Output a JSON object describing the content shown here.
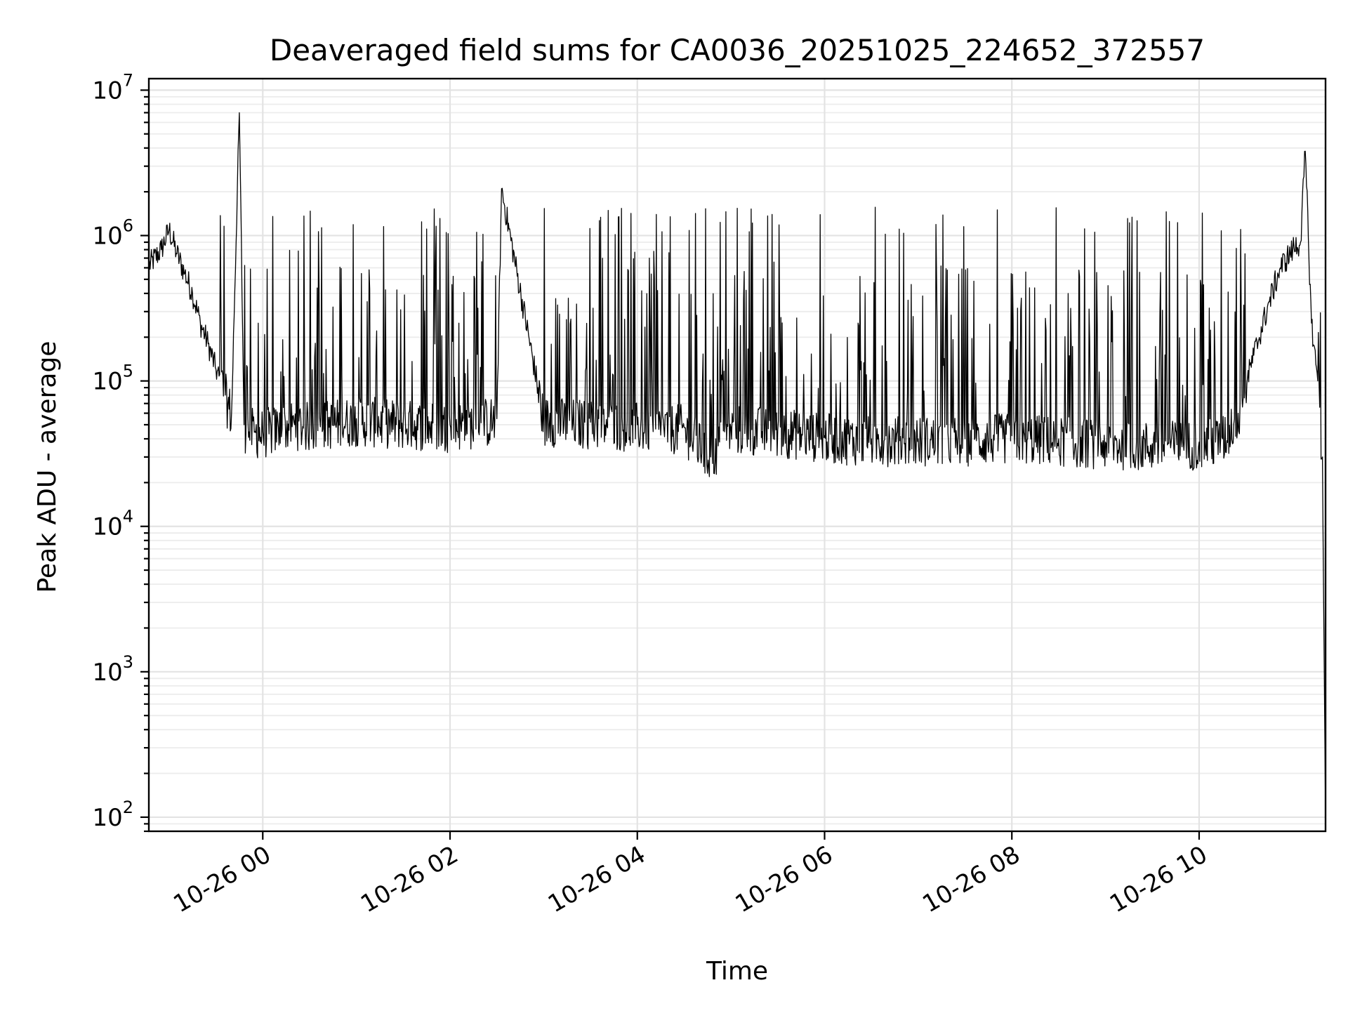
{
  "chart_data": {
    "type": "line",
    "title": "Deaveraged field sums for CA0036_20251025_224652_372557",
    "xlabel": "Time",
    "ylabel": "Peak ADU - average",
    "x_range": [
      "2025-10-25 22:47",
      "2025-10-26 11:21"
    ],
    "ylim": [
      80,
      12000000
    ],
    "y_scale": "log",
    "grid": true,
    "x_ticks": [
      "10-26 00",
      "10-26 02",
      "10-26 04",
      "10-26 06",
      "10-26 08",
      "10-26 10"
    ],
    "x_tick_times": [
      "2025-10-26 00:00",
      "2025-10-26 02:00",
      "2025-10-26 04:00",
      "2025-10-26 06:00",
      "2025-10-26 08:00",
      "2025-10-26 10:00"
    ],
    "y_ticks": [
      {
        "base": "10",
        "exp": "2"
      },
      {
        "base": "10",
        "exp": "3"
      },
      {
        "base": "10",
        "exp": "4"
      },
      {
        "base": "10",
        "exp": "5"
      },
      {
        "base": "10",
        "exp": "6"
      },
      {
        "base": "10",
        "exp": "7"
      }
    ],
    "y_tick_values": [
      100,
      1000,
      10000,
      100000,
      1000000,
      10000000
    ],
    "line_color": "#000000",
    "series": [
      {
        "x": [
          "2025-10-25 22:47",
          "2025-10-25 22:55",
          "2025-10-25 23:00",
          "2025-10-25 23:05",
          "2025-10-25 23:10",
          "2025-10-25 23:15",
          "2025-10-25 23:20",
          "2025-10-25 23:25",
          "2025-10-25 23:30",
          "2025-10-25 23:36",
          "2025-10-25 23:40",
          "2025-10-25 23:45",
          "2025-10-25 23:48",
          "2025-10-25 23:55",
          "2025-10-26 00:00",
          "2025-10-26 00:10",
          "2025-10-26 00:20",
          "2025-10-26 00:30",
          "2025-10-26 01:00",
          "2025-10-26 01:30",
          "2025-10-26 02:00",
          "2025-10-26 02:30",
          "2025-10-26 02:33",
          "2025-10-26 03:00",
          "2025-10-26 03:30",
          "2025-10-26 04:00",
          "2025-10-26 04:30",
          "2025-10-26 04:47",
          "2025-10-26 05:00",
          "2025-10-26 05:30",
          "2025-10-26 06:00",
          "2025-10-26 06:30",
          "2025-10-26 07:00",
          "2025-10-26 07:30",
          "2025-10-26 08:00",
          "2025-10-26 08:30",
          "2025-10-26 09:00",
          "2025-10-26 09:30",
          "2025-10-26 10:00",
          "2025-10-26 10:15",
          "2025-10-26 10:25",
          "2025-10-26 10:35",
          "2025-10-26 10:45",
          "2025-10-26 10:52",
          "2025-10-26 11:00",
          "2025-10-26 11:05",
          "2025-10-26 11:08",
          "2025-10-26 11:12",
          "2025-10-26 11:16",
          "2025-10-26 11:19",
          "2025-10-26 11:21"
        ],
        "y": [
          620000,
          800000,
          1100000,
          750000,
          550000,
          400000,
          250000,
          180000,
          120000,
          80000,
          60000,
          7000000,
          50000,
          45000,
          45000,
          48000,
          52000,
          50000,
          55000,
          52000,
          50000,
          55000,
          2100000,
          55000,
          52000,
          50000,
          48000,
          30000,
          48000,
          46000,
          42000,
          40000,
          40000,
          40000,
          42000,
          40000,
          38000,
          37000,
          38000,
          40000,
          60000,
          150000,
          350000,
          600000,
          800000,
          900000,
          3800000,
          250000,
          100000,
          30000,
          100
        ]
      }
    ]
  }
}
